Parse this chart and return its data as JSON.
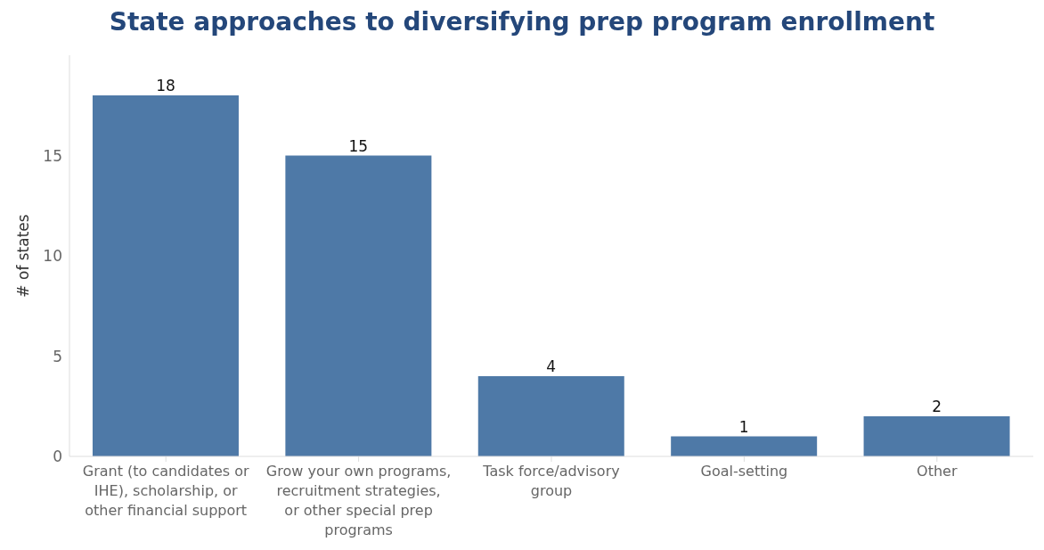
{
  "chart_data": {
    "type": "bar",
    "title": "State approaches to diversifying prep program enrollment",
    "ylabel": "# of states",
    "categories": [
      "Grant (to candidates or IHE), scholarship, or other financial support",
      "Grow your own programs, recruitment strategies, or other special prep programs",
      "Task force/advisory group",
      "Goal-setting",
      "Other"
    ],
    "values": [
      18,
      15,
      4,
      1,
      2
    ],
    "color": "#4e79a7",
    "ylim": [
      0,
      20
    ],
    "yticks": [
      0,
      5,
      10,
      15
    ],
    "data_labels": true,
    "grid": false
  }
}
